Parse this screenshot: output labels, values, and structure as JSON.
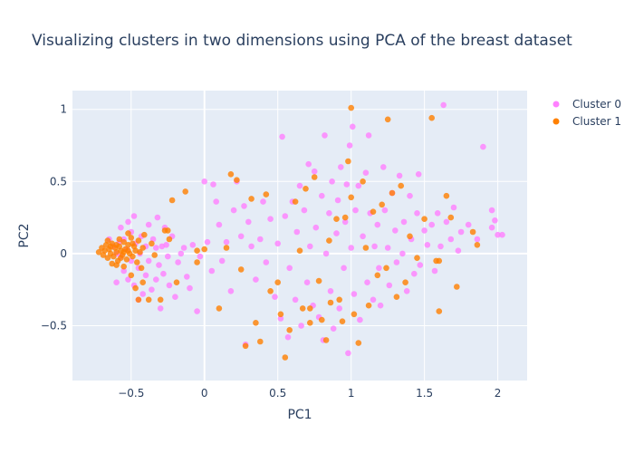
{
  "chart_data": {
    "type": "scatter",
    "title": "Visualizing clusters in two dimensions using PCA of the breast dataset",
    "xlabel": "PC1",
    "ylabel": "PC2",
    "xlim": [
      -0.9,
      2.2
    ],
    "ylim": [
      -0.88,
      1.13
    ],
    "xticks": [
      -0.5,
      0,
      0.5,
      1,
      1.5,
      2
    ],
    "xtick_labels": [
      "−0.5",
      "0",
      "0.5",
      "1",
      "1.5",
      "2"
    ],
    "yticks": [
      -0.5,
      0,
      0.5,
      1
    ],
    "ytick_labels": [
      "−0.5",
      "0",
      "0.5",
      "1"
    ],
    "grid": true,
    "legend_position": "top-right",
    "colors": {
      "plot_bg": "#e5ecf6",
      "grid": "#ffffff",
      "text": "#2a3f5f"
    },
    "series": [
      {
        "name": "Cluster 0",
        "color": "#ff80ff",
        "points": [
          [
            -0.62,
            0.05
          ],
          [
            -0.6,
            0.0
          ],
          [
            -0.58,
            0.08
          ],
          [
            -0.57,
            -0.02
          ],
          [
            -0.55,
            0.1
          ],
          [
            -0.55,
            -0.12
          ],
          [
            -0.53,
            0.03
          ],
          [
            -0.52,
            -0.18
          ],
          [
            -0.5,
            0.15
          ],
          [
            -0.5,
            -0.05
          ],
          [
            -0.48,
            -0.22
          ],
          [
            -0.47,
            0.07
          ],
          [
            -0.45,
            -0.1
          ],
          [
            -0.45,
            -0.32
          ],
          [
            -0.43,
            0.12
          ],
          [
            -0.42,
            -0.28
          ],
          [
            -0.4,
            -0.15
          ],
          [
            -0.38,
            0.2
          ],
          [
            -0.38,
            -0.05
          ],
          [
            -0.36,
            -0.25
          ],
          [
            -0.35,
            0.1
          ],
          [
            -0.33,
            -0.18
          ],
          [
            -0.32,
            0.25
          ],
          [
            -0.31,
            -0.08
          ],
          [
            -0.3,
            -0.38
          ],
          [
            -0.29,
            0.05
          ],
          [
            -0.28,
            -0.14
          ],
          [
            -0.27,
            0.18
          ],
          [
            -0.25,
            -0.02
          ],
          [
            -0.24,
            -0.22
          ],
          [
            -0.22,
            0.12
          ],
          [
            -0.2,
            -0.3
          ],
          [
            -0.18,
            -0.06
          ],
          [
            -0.16,
            0.0
          ],
          [
            -0.14,
            0.04
          ],
          [
            -0.12,
            -0.16
          ],
          [
            -0.1,
            -0.24
          ],
          [
            -0.08,
            0.06
          ],
          [
            -0.05,
            -0.4
          ],
          [
            -0.03,
            -0.02
          ],
          [
            0.0,
            0.5
          ],
          [
            0.02,
            0.08
          ],
          [
            0.05,
            -0.12
          ],
          [
            0.08,
            0.36
          ],
          [
            0.1,
            0.2
          ],
          [
            0.12,
            -0.05
          ],
          [
            0.15,
            0.08
          ],
          [
            0.18,
            -0.26
          ],
          [
            0.2,
            0.3
          ],
          [
            0.22,
            0.5
          ],
          [
            0.25,
            0.12
          ],
          [
            0.27,
            0.33
          ],
          [
            0.28,
            -0.63
          ],
          [
            0.3,
            0.22
          ],
          [
            0.32,
            0.05
          ],
          [
            0.35,
            -0.18
          ],
          [
            0.38,
            0.1
          ],
          [
            0.4,
            0.36
          ],
          [
            0.42,
            -0.06
          ],
          [
            0.45,
            0.24
          ],
          [
            0.48,
            -0.3
          ],
          [
            0.5,
            0.07
          ],
          [
            0.52,
            -0.45
          ],
          [
            0.53,
            0.81
          ],
          [
            0.55,
            0.26
          ],
          [
            0.57,
            -0.58
          ],
          [
            0.58,
            -0.1
          ],
          [
            0.6,
            0.36
          ],
          [
            0.62,
            -0.32
          ],
          [
            0.63,
            0.15
          ],
          [
            0.65,
            0.47
          ],
          [
            0.66,
            -0.5
          ],
          [
            0.68,
            0.3
          ],
          [
            0.7,
            -0.2
          ],
          [
            0.71,
            0.62
          ],
          [
            0.72,
            0.05
          ],
          [
            0.74,
            -0.36
          ],
          [
            0.75,
            0.57
          ],
          [
            0.76,
            0.18
          ],
          [
            0.78,
            -0.44
          ],
          [
            0.8,
            0.4
          ],
          [
            0.81,
            -0.6
          ],
          [
            0.82,
            0.82
          ],
          [
            0.83,
            0.0
          ],
          [
            0.85,
            0.28
          ],
          [
            0.86,
            -0.26
          ],
          [
            0.87,
            0.5
          ],
          [
            0.88,
            -0.52
          ],
          [
            0.9,
            0.14
          ],
          [
            0.91,
            0.37
          ],
          [
            0.92,
            -0.38
          ],
          [
            0.93,
            0.6
          ],
          [
            0.95,
            -0.1
          ],
          [
            0.96,
            0.22
          ],
          [
            0.97,
            0.48
          ],
          [
            0.98,
            -0.69
          ],
          [
            0.99,
            0.75
          ],
          [
            1.0,
            0.04
          ],
          [
            1.01,
            0.88
          ],
          [
            1.02,
            -0.28
          ],
          [
            1.03,
            0.3
          ],
          [
            1.05,
            0.47
          ],
          [
            1.06,
            -0.46
          ],
          [
            1.08,
            0.12
          ],
          [
            1.1,
            0.56
          ],
          [
            1.11,
            -0.2
          ],
          [
            1.12,
            0.82
          ],
          [
            1.13,
            0.28
          ],
          [
            1.15,
            -0.32
          ],
          [
            1.16,
            0.05
          ],
          [
            1.18,
            0.2
          ],
          [
            1.19,
            -0.1
          ],
          [
            1.2,
            -0.36
          ],
          [
            1.22,
            0.6
          ],
          [
            1.23,
            0.3
          ],
          [
            1.25,
            0.04
          ],
          [
            1.26,
            -0.22
          ],
          [
            1.28,
            0.42
          ],
          [
            1.3,
            0.16
          ],
          [
            1.31,
            -0.06
          ],
          [
            1.33,
            0.54
          ],
          [
            1.35,
            0.0
          ],
          [
            1.36,
            0.22
          ],
          [
            1.38,
            -0.26
          ],
          [
            1.4,
            0.4
          ],
          [
            1.41,
            0.1
          ],
          [
            1.43,
            -0.14
          ],
          [
            1.45,
            0.28
          ],
          [
            1.46,
            0.55
          ],
          [
            1.47,
            -0.08
          ],
          [
            1.5,
            0.16
          ],
          [
            1.52,
            0.06
          ],
          [
            1.55,
            0.2
          ],
          [
            1.57,
            -0.12
          ],
          [
            1.59,
            0.28
          ],
          [
            1.61,
            0.05
          ],
          [
            1.63,
            1.03
          ],
          [
            1.65,
            0.22
          ],
          [
            1.68,
            0.1
          ],
          [
            1.7,
            0.32
          ],
          [
            1.73,
            0.02
          ],
          [
            1.75,
            0.15
          ],
          [
            1.8,
            0.2
          ],
          [
            1.86,
            0.1
          ],
          [
            1.9,
            0.74
          ],
          [
            1.96,
            0.3
          ],
          [
            1.98,
            0.23
          ],
          [
            2.0,
            0.13
          ],
          [
            2.03,
            0.13
          ],
          [
            1.96,
            0.18
          ],
          [
            -0.6,
            -0.2
          ],
          [
            -0.65,
            0.1
          ],
          [
            -0.57,
            0.18
          ],
          [
            -0.44,
            0.0
          ],
          [
            -0.4,
            0.05
          ],
          [
            -0.52,
            0.22
          ],
          [
            -0.48,
            0.26
          ],
          [
            -0.33,
            0.04
          ],
          [
            -0.26,
            0.06
          ],
          [
            0.06,
            0.48
          ]
        ]
      },
      {
        "name": "Cluster 1",
        "color": "#ff8000",
        "points": [
          [
            -0.72,
            0.01
          ],
          [
            -0.7,
            0.04
          ],
          [
            -0.69,
            -0.01
          ],
          [
            -0.68,
            0.02
          ],
          [
            -0.67,
            0.06
          ],
          [
            -0.66,
            -0.03
          ],
          [
            -0.65,
            0.03
          ],
          [
            -0.64,
            0.0
          ],
          [
            -0.63,
            0.07
          ],
          [
            -0.62,
            -0.02
          ],
          [
            -0.61,
            0.04
          ],
          [
            -0.6,
            0.01
          ],
          [
            -0.59,
            -0.05
          ],
          [
            -0.58,
            0.05
          ],
          [
            -0.57,
            0.02
          ],
          [
            -0.56,
            -0.01
          ],
          [
            -0.55,
            0.08
          ],
          [
            -0.54,
            0.03
          ],
          [
            -0.53,
            -0.04
          ],
          [
            -0.52,
            0.06
          ],
          [
            -0.51,
            0.0
          ],
          [
            -0.5,
            0.11
          ],
          [
            -0.49,
            -0.02
          ],
          [
            -0.48,
            0.05
          ],
          [
            -0.47,
            0.02
          ],
          [
            -0.46,
            -0.06
          ],
          [
            -0.45,
            0.09
          ],
          [
            -0.44,
            0.01
          ],
          [
            -0.43,
            -0.1
          ],
          [
            -0.42,
            0.04
          ],
          [
            -0.41,
            0.13
          ],
          [
            -0.6,
            -0.08
          ],
          [
            -0.55,
            -0.09
          ],
          [
            -0.52,
            0.14
          ],
          [
            -0.58,
            0.1
          ],
          [
            -0.66,
            0.09
          ],
          [
            -0.63,
            -0.07
          ],
          [
            -0.5,
            -0.15
          ],
          [
            -0.47,
            -0.24
          ],
          [
            -0.45,
            -0.32
          ],
          [
            -0.38,
            -0.32
          ],
          [
            -0.42,
            -0.2
          ],
          [
            -0.36,
            0.07
          ],
          [
            -0.34,
            -0.01
          ],
          [
            -0.3,
            -0.32
          ],
          [
            -0.27,
            0.16
          ],
          [
            -0.25,
            0.16
          ],
          [
            -0.24,
            0.1
          ],
          [
            -0.22,
            0.37
          ],
          [
            -0.19,
            -0.2
          ],
          [
            -0.13,
            0.43
          ],
          [
            -0.05,
            0.02
          ],
          [
            -0.05,
            -0.06
          ],
          [
            0.0,
            0.03
          ],
          [
            0.1,
            -0.38
          ],
          [
            0.15,
            0.04
          ],
          [
            0.18,
            0.55
          ],
          [
            0.22,
            0.51
          ],
          [
            0.25,
            -0.11
          ],
          [
            0.28,
            -0.64
          ],
          [
            0.32,
            0.38
          ],
          [
            0.35,
            -0.48
          ],
          [
            0.38,
            -0.61
          ],
          [
            0.42,
            0.41
          ],
          [
            0.45,
            -0.26
          ],
          [
            0.5,
            -0.2
          ],
          [
            0.52,
            -0.42
          ],
          [
            0.55,
            -0.72
          ],
          [
            0.58,
            -0.53
          ],
          [
            0.62,
            0.36
          ],
          [
            0.65,
            0.02
          ],
          [
            0.67,
            -0.38
          ],
          [
            0.69,
            0.45
          ],
          [
            0.72,
            -0.48
          ],
          [
            0.75,
            0.53
          ],
          [
            0.78,
            -0.19
          ],
          [
            0.8,
            -0.46
          ],
          [
            0.83,
            -0.6
          ],
          [
            0.86,
            -0.34
          ],
          [
            0.9,
            0.24
          ],
          [
            0.92,
            -0.32
          ],
          [
            0.94,
            -0.47
          ],
          [
            0.96,
            0.25
          ],
          [
            0.98,
            0.64
          ],
          [
            1.0,
            0.39
          ],
          [
            1.02,
            -0.42
          ],
          [
            1.05,
            -0.62
          ],
          [
            1.08,
            0.5
          ],
          [
            1.1,
            0.04
          ],
          [
            1.12,
            -0.36
          ],
          [
            1.15,
            0.29
          ],
          [
            1.18,
            -0.15
          ],
          [
            1.21,
            0.34
          ],
          [
            1.24,
            -0.1
          ],
          [
            1.28,
            0.42
          ],
          [
            1.31,
            -0.3
          ],
          [
            1.34,
            0.47
          ],
          [
            1.37,
            -0.2
          ],
          [
            1.4,
            0.12
          ],
          [
            1.45,
            -0.03
          ],
          [
            1.5,
            0.24
          ],
          [
            1.55,
            0.94
          ],
          [
            1.58,
            -0.05
          ],
          [
            1.6,
            -0.4
          ],
          [
            1.65,
            0.4
          ],
          [
            1.68,
            0.25
          ],
          [
            1.72,
            -0.23
          ],
          [
            1.6,
            -0.05
          ],
          [
            1.83,
            0.15
          ],
          [
            1.86,
            0.06
          ],
          [
            1.25,
            0.93
          ],
          [
            1.0,
            1.01
          ],
          [
            0.72,
            -0.38
          ],
          [
            0.85,
            0.09
          ],
          [
            -0.55,
            0.01
          ],
          [
            -0.52,
            0.02
          ],
          [
            -0.49,
            0.07
          ],
          [
            -0.6,
            0.06
          ],
          [
            -0.57,
            -0.03
          ],
          [
            -0.64,
            0.05
          ]
        ]
      }
    ]
  }
}
